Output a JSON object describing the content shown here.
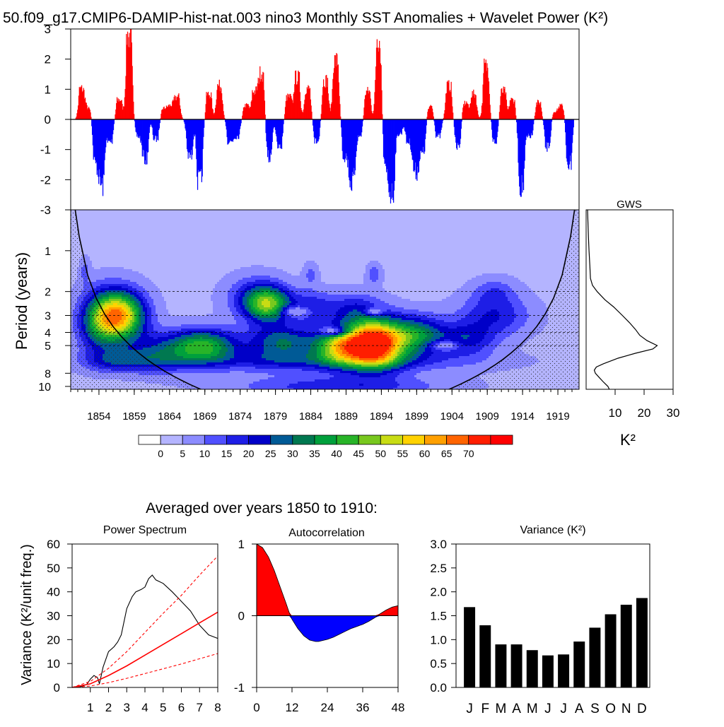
{
  "figure": {
    "title": "50.f09_g17.CMIP6-DAMIP-hist-nat.003 nino3 Monthly SST Anomalies + Wavelet Power (K²)",
    "averaged_title": "Averaged over years 1850 to 1910:"
  },
  "chart_data": [
    {
      "id": "anomaly",
      "type": "area",
      "ylim": [
        -3,
        3
      ],
      "yticks": [
        "3",
        "2",
        "1",
        "0",
        "-1",
        "-2",
        "-3"
      ],
      "positive_color": "#ff0000",
      "negative_color": "#0000ff",
      "xlim": [
        1850,
        1922
      ],
      "series_note": "monthly nino3 SST anomaly (K)",
      "peaks": [
        {
          "x": 1851.5,
          "y": 1.1
        },
        {
          "x": 1852.5,
          "y": 0.4
        },
        {
          "x": 1853.5,
          "y": -1.6
        },
        {
          "x": 1854.3,
          "y": -2.4
        },
        {
          "x": 1855.5,
          "y": -0.8
        },
        {
          "x": 1856.8,
          "y": 0.7
        },
        {
          "x": 1858.2,
          "y": 3.0
        },
        {
          "x": 1859.5,
          "y": -0.6
        },
        {
          "x": 1860.5,
          "y": -1.4
        },
        {
          "x": 1862.0,
          "y": -0.7
        },
        {
          "x": 1863.2,
          "y": 0.4
        },
        {
          "x": 1864.0,
          "y": 0.5
        },
        {
          "x": 1865.0,
          "y": 0.8
        },
        {
          "x": 1866.8,
          "y": -1.3
        },
        {
          "x": 1868.2,
          "y": -2.2
        },
        {
          "x": 1869.5,
          "y": 0.9
        },
        {
          "x": 1871.0,
          "y": 1.2
        },
        {
          "x": 1872.5,
          "y": -0.8
        },
        {
          "x": 1873.5,
          "y": -0.6
        },
        {
          "x": 1874.8,
          "y": 0.5
        },
        {
          "x": 1876.0,
          "y": 1.0
        },
        {
          "x": 1877.0,
          "y": 1.7
        },
        {
          "x": 1878.0,
          "y": -1.4
        },
        {
          "x": 1879.5,
          "y": -1.0
        },
        {
          "x": 1880.8,
          "y": 0.8
        },
        {
          "x": 1882.0,
          "y": 1.5
        },
        {
          "x": 1883.5,
          "y": 1.1
        },
        {
          "x": 1884.8,
          "y": -0.8
        },
        {
          "x": 1886.0,
          "y": 1.4
        },
        {
          "x": 1887.5,
          "y": 2.1
        },
        {
          "x": 1888.8,
          "y": -1.3
        },
        {
          "x": 1889.8,
          "y": -2.3
        },
        {
          "x": 1890.8,
          "y": -0.6
        },
        {
          "x": 1892.0,
          "y": 1.0
        },
        {
          "x": 1893.6,
          "y": 3.0
        },
        {
          "x": 1894.5,
          "y": -1.9
        },
        {
          "x": 1895.4,
          "y": -2.7
        },
        {
          "x": 1896.5,
          "y": -0.5
        },
        {
          "x": 1897.8,
          "y": -0.8
        },
        {
          "x": 1898.8,
          "y": -1.9
        },
        {
          "x": 1899.8,
          "y": -1.2
        },
        {
          "x": 1900.8,
          "y": 0.5
        },
        {
          "x": 1902.0,
          "y": -0.6
        },
        {
          "x": 1903.5,
          "y": 1.2
        },
        {
          "x": 1904.8,
          "y": -1.0
        },
        {
          "x": 1905.8,
          "y": 0.6
        },
        {
          "x": 1907.0,
          "y": 0.9
        },
        {
          "x": 1908.8,
          "y": 1.9
        },
        {
          "x": 1910.0,
          "y": -0.8
        },
        {
          "x": 1911.2,
          "y": 1.0
        },
        {
          "x": 1912.5,
          "y": 0.7
        },
        {
          "x": 1913.8,
          "y": -2.4
        },
        {
          "x": 1915.0,
          "y": -0.6
        },
        {
          "x": 1916.2,
          "y": 0.6
        },
        {
          "x": 1917.5,
          "y": -1.0
        },
        {
          "x": 1918.5,
          "y": 0.3
        },
        {
          "x": 1919.5,
          "y": 0.5
        },
        {
          "x": 1920.5,
          "y": -1.6
        }
      ]
    },
    {
      "id": "wavelet",
      "type": "heatmap",
      "ylabel": "Period (years)",
      "xlim": [
        1850,
        1922
      ],
      "xticks": [
        "1854",
        "1859",
        "1864",
        "1869",
        "1874",
        "1879",
        "1884",
        "1889",
        "1894",
        "1899",
        "1904",
        "1909",
        "1914",
        "1919"
      ],
      "xtick_values": [
        1854,
        1859,
        1864,
        1869,
        1874,
        1879,
        1884,
        1889,
        1894,
        1899,
        1904,
        1909,
        1914,
        1919
      ],
      "yticks": [
        "1",
        "2",
        "3",
        "4",
        "5",
        "8",
        "10"
      ],
      "ytick_values": [
        1,
        2,
        3,
        4,
        5,
        8,
        10
      ],
      "period_range": [
        0.5,
        10.5
      ],
      "reference_periods": [
        2,
        3,
        4,
        5
      ],
      "colorbar_labels": [
        "0",
        "5",
        "10",
        "15",
        "20",
        "25",
        "30",
        "35",
        "40",
        "45",
        "50",
        "55",
        "60",
        "65",
        "70"
      ],
      "colors": [
        "#ffffff",
        "#b4b4ff",
        "#8c8cff",
        "#5050ff",
        "#1e1ee6",
        "#0000c8",
        "#005a96",
        "#007850",
        "#00a03c",
        "#28b428",
        "#78c81e",
        "#c8dc14",
        "#ffd200",
        "#ffa000",
        "#ff6400",
        "#ff1e00",
        "#ff0000"
      ],
      "blobs": [
        {
          "x": 1857,
          "period": 3.0,
          "power": 55,
          "sx": 3.5,
          "sp": 0.18
        },
        {
          "x": 1854,
          "period": 3.4,
          "power": 25,
          "sx": 3.0,
          "sp": 0.22
        },
        {
          "x": 1869,
          "period": 5.0,
          "power": 35,
          "sx": 4.5,
          "sp": 0.12
        },
        {
          "x": 1863,
          "period": 5.5,
          "power": 18,
          "sx": 5.0,
          "sp": 0.14
        },
        {
          "x": 1857,
          "period": 6.5,
          "power": 16,
          "sx": 5.0,
          "sp": 0.08
        },
        {
          "x": 1878,
          "period": 2.5,
          "power": 38,
          "sx": 3.2,
          "sp": 0.13
        },
        {
          "x": 1876,
          "period": 2.2,
          "power": 14,
          "sx": 4.0,
          "sp": 0.15
        },
        {
          "x": 1884,
          "period": 2.6,
          "power": 14,
          "sx": 3.0,
          "sp": 0.12
        },
        {
          "x": 1880,
          "period": 4.7,
          "power": 26,
          "sx": 5.0,
          "sp": 0.12
        },
        {
          "x": 1893,
          "period": 4.8,
          "power": 75,
          "sx": 4.0,
          "sp": 0.17
        },
        {
          "x": 1888,
          "period": 5.0,
          "power": 40,
          "sx": 3.5,
          "sp": 0.13
        },
        {
          "x": 1899,
          "period": 4.2,
          "power": 30,
          "sx": 4.0,
          "sp": 0.14
        },
        {
          "x": 1890,
          "period": 2.7,
          "power": 15,
          "sx": 4.0,
          "sp": 0.12
        },
        {
          "x": 1893,
          "period": 1.5,
          "power": 10,
          "sx": 1.0,
          "sp": 0.08
        },
        {
          "x": 1884,
          "period": 1.5,
          "power": 8,
          "sx": 1.0,
          "sp": 0.08
        },
        {
          "x": 1852,
          "period": 1.4,
          "power": 8,
          "sx": 0.7,
          "sp": 0.09
        },
        {
          "x": 1910,
          "period": 3.0,
          "power": 16,
          "sx": 5.0,
          "sp": 0.15
        },
        {
          "x": 1906,
          "period": 4.5,
          "power": 18,
          "sx": 4.0,
          "sp": 0.12
        },
        {
          "x": 1910,
          "period": 2.0,
          "power": 9,
          "sx": 3.0,
          "sp": 0.1
        },
        {
          "x": 1885,
          "period": 6.5,
          "power": 17,
          "sx": 20.0,
          "sp": 0.08
        },
        {
          "x": 1888,
          "period": 10.0,
          "power": 15,
          "sx": 14.0,
          "sp": 0.08
        }
      ],
      "holes": [
        {
          "x": 1882,
          "period": 2.8,
          "sx": 2.0,
          "sp": 0.04
        },
        {
          "x": 1887,
          "period": 3.9,
          "sx": 2.0,
          "sp": 0.035
        },
        {
          "x": 1903,
          "period": 5.0,
          "sx": 2.0,
          "sp": 0.035
        },
        {
          "x": 1893,
          "period": 2.8,
          "sx": 1.3,
          "sp": 0.03
        }
      ]
    },
    {
      "id": "gws",
      "type": "line",
      "title": "GWS",
      "xlabel": "K²",
      "xlim": [
        0,
        30
      ],
      "xticks": [
        "10",
        "20",
        "30"
      ],
      "xtick_values": [
        10,
        20,
        30
      ],
      "period": [
        0.5,
        0.8,
        1.0,
        1.3,
        1.6,
        1.8,
        2.0,
        2.3,
        2.6,
        3.0,
        3.4,
        3.8,
        4.2,
        4.6,
        5.0,
        5.3,
        5.7,
        6.2,
        6.8,
        7.2,
        7.6,
        8.0,
        8.6,
        9.2,
        10.0,
        10.5
      ],
      "values": [
        0.5,
        0.8,
        1.0,
        1.3,
        1.5,
        2.2,
        3.8,
        6.5,
        9.5,
        12.5,
        15.0,
        17.0,
        18.5,
        21.0,
        24.5,
        23.0,
        17.0,
        11.0,
        6.0,
        3.5,
        2.8,
        3.2,
        4.5,
        5.8,
        7.5,
        8.0
      ]
    },
    {
      "id": "power-spectrum",
      "type": "line",
      "title": "Power Spectrum",
      "ylabel": "Variance (K²/unit freq.)",
      "xlim": [
        0,
        8
      ],
      "ylim": [
        0,
        60
      ],
      "xticks": [
        "1",
        "2",
        "3",
        "4",
        "5",
        "6",
        "7",
        "8"
      ],
      "xtick_values": [
        1,
        2,
        3,
        4,
        5,
        6,
        7,
        8
      ],
      "yticks": [
        "60",
        "50",
        "40",
        "30",
        "20",
        "10",
        "0"
      ],
      "ytick_values": [
        60,
        50,
        40,
        30,
        20,
        10,
        0
      ],
      "series": [
        {
          "color": "#000000",
          "dash": "none",
          "x": [
            0.1,
            0.5,
            0.8,
            1.0,
            1.2,
            1.4,
            1.5,
            1.7,
            2.0,
            2.3,
            2.5,
            2.7,
            3.0,
            3.3,
            3.5,
            3.8,
            4.0,
            4.2,
            4.4,
            4.6,
            5.0,
            5.5,
            6.0,
            6.5,
            7.0,
            7.5,
            8.0
          ],
          "y": [
            0.0,
            0.4,
            1.2,
            3.5,
            5.0,
            4.0,
            1.5,
            8.5,
            15.0,
            17.0,
            19.0,
            22.0,
            33.0,
            38.0,
            40.0,
            41.0,
            42.0,
            45.5,
            47.0,
            45.0,
            43.5,
            40.0,
            36.0,
            32.0,
            26.0,
            22.0,
            20.5
          ]
        },
        {
          "color": "#ff0000",
          "dash": "none",
          "x": [
            0,
            1,
            2,
            3,
            4,
            5,
            6,
            7,
            8
          ],
          "y": [
            0.0,
            1.5,
            5.0,
            9.0,
            13.5,
            18.0,
            22.5,
            27.0,
            31.5
          ]
        },
        {
          "color": "#ff0000",
          "dash": "4,3",
          "x": [
            0,
            1,
            2,
            3,
            4,
            5,
            6,
            7,
            8
          ],
          "y": [
            0.0,
            2.5,
            8.0,
            15.0,
            23.0,
            31.0,
            38.5,
            47.0,
            55.0
          ]
        },
        {
          "color": "#ff0000",
          "dash": "4,3",
          "x": [
            0,
            1,
            2,
            3,
            4,
            5,
            6,
            7,
            8
          ],
          "y": [
            0.0,
            0.6,
            2.0,
            3.8,
            5.8,
            7.8,
            9.8,
            12.0,
            14.2
          ]
        }
      ]
    },
    {
      "id": "autocorrelation",
      "type": "area",
      "title": "Autocorrelation",
      "xlim": [
        0,
        48
      ],
      "ylim": [
        -1,
        1
      ],
      "xticks": [
        "0",
        "12",
        "24",
        "36",
        "48"
      ],
      "xtick_values": [
        0,
        12,
        24,
        36,
        48
      ],
      "yticks": [
        "1",
        "0",
        "-1"
      ],
      "ytick_values": [
        1,
        0,
        -1
      ],
      "positive_color": "#ff0000",
      "negative_color": "#0000ff",
      "x": [
        0,
        2,
        4,
        6,
        8,
        10,
        11,
        12,
        14,
        16,
        18,
        20,
        21,
        22,
        24,
        26,
        28,
        30,
        32,
        34,
        36,
        38,
        40,
        42,
        44,
        46,
        48
      ],
      "y": [
        1.0,
        0.95,
        0.82,
        0.63,
        0.4,
        0.17,
        0.05,
        -0.05,
        -0.18,
        -0.28,
        -0.34,
        -0.36,
        -0.36,
        -0.35,
        -0.33,
        -0.3,
        -0.26,
        -0.22,
        -0.18,
        -0.15,
        -0.12,
        -0.08,
        -0.03,
        0.03,
        0.08,
        0.12,
        0.14
      ]
    },
    {
      "id": "variance",
      "type": "bar",
      "title": "Variance (K²)",
      "categories": [
        "J",
        "F",
        "M",
        "A",
        "M",
        "J",
        "J",
        "A",
        "S",
        "O",
        "N",
        "D"
      ],
      "values": [
        1.68,
        1.3,
        0.9,
        0.9,
        0.78,
        0.67,
        0.69,
        0.96,
        1.25,
        1.53,
        1.73,
        1.87
      ],
      "ylim": [
        0,
        3
      ],
      "yticks": [
        "3.0",
        "2.5",
        "2.0",
        "1.5",
        "1.0",
        "0.5",
        "0.0"
      ],
      "ytick_values": [
        3.0,
        2.5,
        2.0,
        1.5,
        1.0,
        0.5,
        0.0
      ],
      "bar_color": "#000000"
    }
  ]
}
